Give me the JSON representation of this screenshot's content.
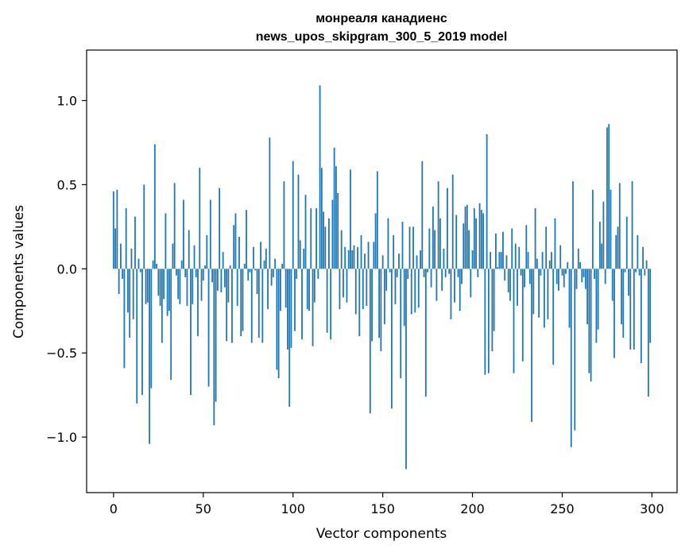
{
  "chart_data": {
    "type": "bar",
    "title_lines": [
      "монреаля канадиенс",
      "news_upos_skipgram_300_5_2019 model"
    ],
    "xlabel": "Vector components",
    "ylabel": "Components values",
    "xlim": [
      -15,
      314
    ],
    "ylim": [
      -1.33,
      1.3
    ],
    "xticks": [
      0,
      50,
      100,
      150,
      200,
      250,
      300
    ],
    "yticks": [
      -1.0,
      -0.5,
      0.0,
      0.5,
      1.0
    ],
    "ytick_labels": [
      "−1.0",
      "−0.5",
      "0.0",
      "0.5",
      "1.0"
    ],
    "bar_color": "#1f77b4",
    "grid": false,
    "values": [
      0.46,
      0.24,
      0.47,
      -0.15,
      0.15,
      -0.06,
      -0.59,
      0.36,
      -0.26,
      -0.41,
      0.12,
      -0.3,
      0.31,
      -0.8,
      0.06,
      -0.02,
      -0.75,
      0.5,
      -0.21,
      -0.2,
      -1.04,
      -0.71,
      0.05,
      0.74,
      0.03,
      -0.16,
      -0.22,
      -0.44,
      -0.18,
      0.33,
      -0.28,
      -0.25,
      -0.66,
      0.15,
      0.51,
      -0.04,
      -0.18,
      -0.21,
      0.05,
      0.41,
      -0.05,
      -0.22,
      0.23,
      -0.75,
      -0.21,
      0.14,
      -0.05,
      -0.4,
      0.6,
      -0.19,
      -0.07,
      0.02,
      0.2,
      -0.7,
      0.41,
      -0.08,
      -0.93,
      -0.79,
      -0.13,
      0.48,
      -0.14,
      0.1,
      -0.11,
      -0.43,
      -0.2,
      0.02,
      -0.44,
      0.26,
      0.33,
      -0.22,
      0.19,
      -0.4,
      -0.37,
      0.03,
      0.35,
      -0.07,
      -0.02,
      -0.44,
      0.13,
      -0.01,
      -0.15,
      -0.41,
      0.16,
      -0.44,
      0.05,
      0.12,
      -0.24,
      0.78,
      -0.1,
      -0.05,
      0.06,
      -0.6,
      -0.65,
      -0.25,
      0.03,
      0.52,
      -0.23,
      -0.48,
      -0.82,
      -0.47,
      0.64,
      -0.37,
      -0.06,
      0.56,
      0.17,
      -0.42,
      0.12,
      0.44,
      -0.24,
      -0.25,
      0.36,
      -0.46,
      -0.2,
      0.36,
      -0.06,
      1.09,
      0.6,
      0.34,
      0.25,
      -0.38,
      0.3,
      -0.42,
      0.41,
      0.72,
      0.61,
      0.45,
      -0.24,
      0.23,
      -0.17,
      0.13,
      -0.2,
      0.11,
      0.59,
      0.11,
      0.14,
      -0.27,
      0.13,
      -0.4,
      0.2,
      -0.24,
      0.09,
      -0.22,
      0.16,
      -0.86,
      -0.43,
      0.16,
      0.33,
      0.58,
      -0.41,
      -0.49,
      0.08,
      -0.33,
      -0.13,
      0.3,
      -0.02,
      -0.83,
      0.2,
      -0.21,
      -0.05,
      0.09,
      -0.65,
      0.28,
      -0.34,
      -1.19,
      -0.06,
      0.25,
      -0.27,
      0.25,
      -0.26,
      0.08,
      -0.23,
      0.11,
      0.64,
      -0.05,
      -0.76,
      -0.02,
      0.24,
      -0.11,
      0.37,
      0.23,
      -0.19,
      0.52,
      0.3,
      -0.13,
      0.12,
      -0.05,
      0.48,
      -0.03,
      -0.3,
      0.56,
      -0.2,
      0.32,
      -0.05,
      -0.25,
      -0.09,
      0.27,
      0.37,
      0.38,
      0.23,
      -0.17,
      0.11,
      0.36,
      0.3,
      -0.05,
      0.39,
      0.35,
      0.33,
      -0.63,
      0.8,
      -0.62,
      0.1,
      -0.49,
      -0.37,
      0.21,
      0.01,
      0.1,
      0.1,
      0.22,
      -0.07,
      0.08,
      -0.14,
      -0.19,
      0.24,
      -0.62,
      0.15,
      -0.22,
      0.13,
      -0.04,
      -0.55,
      -0.11,
      0.26,
      0.1,
      -0.09,
      -0.91,
      -0.27,
      0.36,
      0.06,
      -0.29,
      -0.04,
      0.1,
      -0.35,
      0.25,
      -0.3,
      0.05,
      0.1,
      -0.57,
      0.3,
      -0.09,
      -0.13,
      0.14,
      -0.04,
      -0.11,
      -0.03,
      0.04,
      -0.35,
      -1.06,
      0.52,
      -0.96,
      -0.12,
      0.12,
      0.04,
      -0.08,
      -0.05,
      -0.12,
      -0.33,
      -0.62,
      -0.67,
      0.47,
      -0.06,
      -0.44,
      -0.36,
      0.28,
      0.15,
      0.4,
      -0.09,
      0.84,
      0.86,
      0.47,
      -0.19,
      -0.53,
      0.2,
      0.25,
      0.51,
      -0.33,
      -0.41,
      -0.02,
      0.31,
      -0.16,
      -0.48,
      0.52,
      -0.48,
      -0.02,
      0.2,
      -0.04,
      -0.56,
      0.13,
      -0.04,
      0.05,
      -0.76,
      -0.44
    ]
  }
}
